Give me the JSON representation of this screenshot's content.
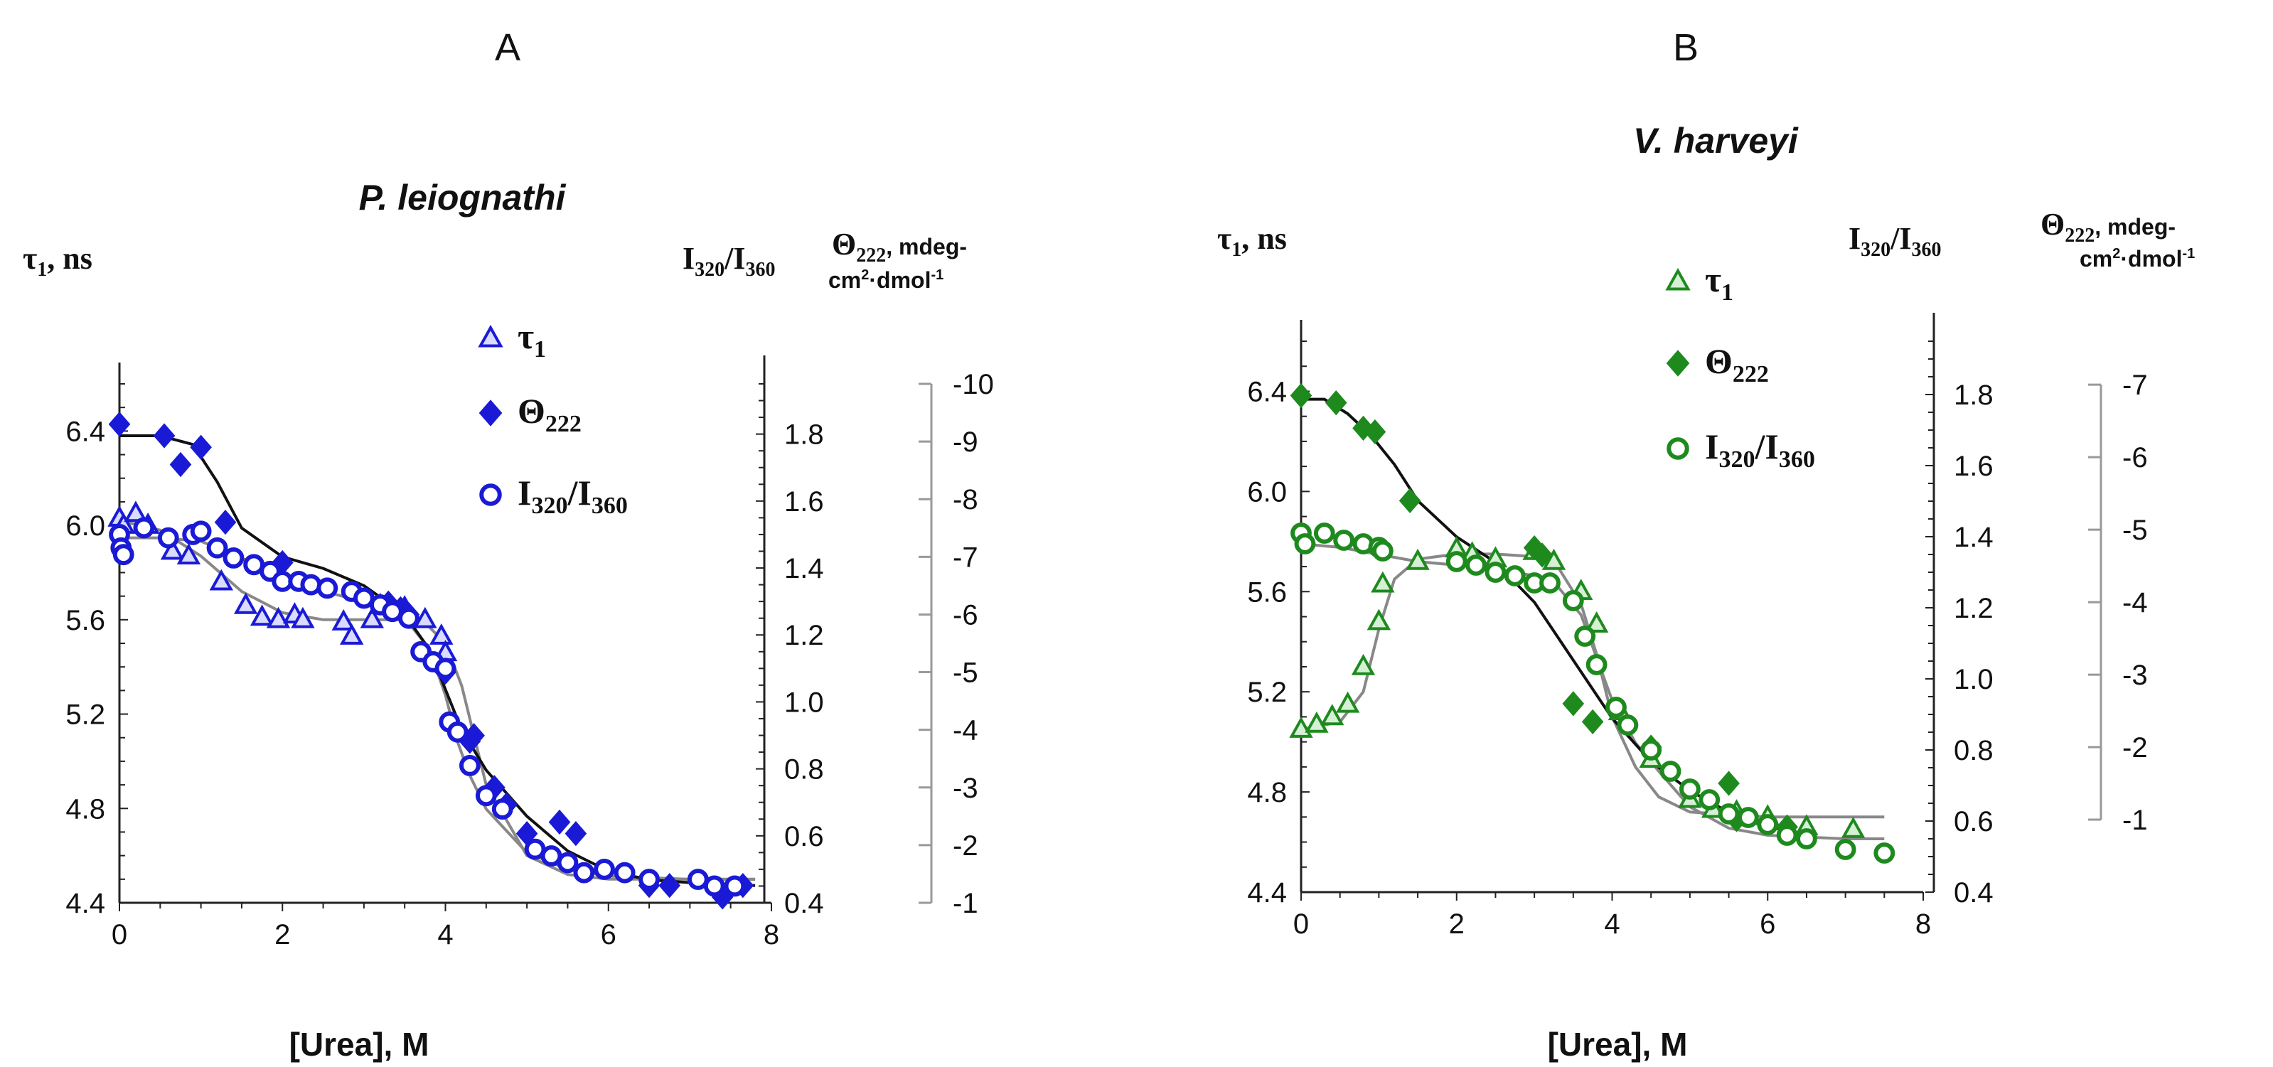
{
  "chart_data": [
    {
      "type": "scatter",
      "panel": "A",
      "title": "P. leiognathi",
      "xlabel": "[Urea], M",
      "xlim": [
        0,
        8
      ],
      "xticks": [
        0,
        2,
        4,
        6,
        8
      ],
      "ylabel_left": "τ1, ns",
      "ylim_left": [
        4.4,
        6.6
      ],
      "yticks_left": [
        4.4,
        4.8,
        5.2,
        5.6,
        6.0,
        6.4
      ],
      "ylabel_right1": "I320/I360",
      "ylim_right1": [
        0.4,
        1.95
      ],
      "yticks_right1": [
        0.4,
        0.6,
        0.8,
        1.0,
        1.2,
        1.4,
        1.6,
        1.8
      ],
      "ylabel_right2": "Θ222, mdeg-cm2-dmol-1",
      "ylim_right2": [
        -1,
        -10
      ],
      "yticks_right2": [
        -1,
        -2,
        -3,
        -4,
        -5,
        -6,
        -7,
        -8,
        -9,
        -10
      ],
      "legend_position": "upper-right",
      "color": "#1a1ad6",
      "fit_color": "#888888",
      "theta_fit_color": "#111111",
      "series": [
        {
          "name": "τ1",
          "marker": "triangle-open",
          "axis": "left",
          "x": [
            0.0,
            0.05,
            0.2,
            0.35,
            0.65,
            0.85,
            1.25,
            1.55,
            1.75,
            1.95,
            2.15,
            2.25,
            2.75,
            2.85,
            3.1,
            3.2,
            3.5,
            3.75,
            3.95,
            4.0
          ],
          "y": [
            6.03,
            6.0,
            6.05,
            6.0,
            5.89,
            5.87,
            5.76,
            5.66,
            5.61,
            5.6,
            5.62,
            5.6,
            5.59,
            5.53,
            5.6,
            5.66,
            5.65,
            5.6,
            5.53,
            5.46
          ]
        },
        {
          "name": "Θ222",
          "marker": "diamond-filled",
          "axis": "right2",
          "x": [
            0.0,
            0.55,
            0.75,
            1.0,
            1.3,
            2.0,
            3.3,
            3.45,
            3.55,
            4.0,
            4.3,
            4.35,
            4.6,
            4.75,
            5.0,
            5.4,
            5.6,
            6.5,
            6.75,
            7.4,
            7.65
          ],
          "y": [
            -9.3,
            -9.1,
            -8.6,
            -8.9,
            -7.6,
            -6.9,
            -6.2,
            -6.1,
            -6.0,
            -5.0,
            -3.8,
            -3.9,
            -3.0,
            -2.7,
            -2.2,
            -2.4,
            -2.2,
            -1.3,
            -1.3,
            -1.1,
            -1.3
          ]
        },
        {
          "name": "I320/I360",
          "marker": "circle-open",
          "axis": "right1",
          "x": [
            0.0,
            0.02,
            0.05,
            0.3,
            0.6,
            0.9,
            1.0,
            1.2,
            1.4,
            1.65,
            1.85,
            2.0,
            2.2,
            2.35,
            2.55,
            2.85,
            3.0,
            3.2,
            3.35,
            3.55,
            3.7,
            3.85,
            4.0,
            4.05,
            4.15,
            4.3,
            4.5,
            4.7,
            5.1,
            5.3,
            5.5,
            5.7,
            5.95,
            6.2,
            6.5,
            7.1,
            7.3,
            7.55
          ],
          "y": [
            1.5,
            1.46,
            1.44,
            1.52,
            1.49,
            1.5,
            1.51,
            1.46,
            1.43,
            1.41,
            1.39,
            1.36,
            1.36,
            1.35,
            1.34,
            1.33,
            1.31,
            1.29,
            1.27,
            1.25,
            1.15,
            1.12,
            1.1,
            0.94,
            0.91,
            0.81,
            0.72,
            0.68,
            0.56,
            0.54,
            0.52,
            0.49,
            0.5,
            0.49,
            0.47,
            0.47,
            0.45,
            0.45
          ]
        }
      ],
      "fit_tau": {
        "x": [
          0,
          0.5,
          1,
          1.5,
          2,
          2.5,
          3,
          3.5,
          3.8,
          4.0,
          4.2,
          4.5,
          5,
          5.5,
          6,
          7,
          7.8
        ],
        "y": [
          6.02,
          5.98,
          5.87,
          5.72,
          5.63,
          5.6,
          5.6,
          5.6,
          5.57,
          5.5,
          5.32,
          4.9,
          4.6,
          4.52,
          4.5,
          4.5,
          4.5
        ]
      },
      "fit_theta": {
        "x": [
          0,
          0.5,
          0.9,
          1.2,
          1.5,
          2,
          2.5,
          3,
          3.5,
          3.8,
          4.0,
          4.2,
          4.5,
          5,
          5.5,
          6,
          6.5,
          7,
          7.8
        ],
        "y": [
          -9.1,
          -9.1,
          -8.95,
          -8.3,
          -7.5,
          -7.0,
          -6.8,
          -6.5,
          -6.0,
          -5.4,
          -4.7,
          -4.0,
          -3.3,
          -2.5,
          -1.9,
          -1.55,
          -1.4,
          -1.35,
          -1.3
        ]
      },
      "fit_ratio": {
        "x": [
          0,
          0.5,
          1,
          1.5,
          2,
          2.5,
          3,
          3.5,
          3.8,
          4.0,
          4.15,
          4.3,
          4.5,
          5,
          5.5,
          6,
          7,
          7.8
        ],
        "y": [
          1.49,
          1.49,
          1.48,
          1.43,
          1.37,
          1.33,
          1.3,
          1.25,
          1.16,
          1.02,
          0.88,
          0.78,
          0.68,
          0.55,
          0.5,
          0.48,
          0.47,
          0.47
        ]
      }
    },
    {
      "type": "scatter",
      "panel": "B",
      "title": "V. harveyi",
      "xlabel": "[Urea], M",
      "xlim": [
        0,
        8
      ],
      "xticks": [
        0,
        2,
        4,
        6,
        8
      ],
      "ylabel_left": "τ1, ns",
      "ylim_left": [
        4.4,
        6.6
      ],
      "yticks_left": [
        4.4,
        4.8,
        5.2,
        5.6,
        6.0,
        6.4
      ],
      "ylabel_right1": "I320/I360",
      "ylim_right1": [
        0.4,
        1.95
      ],
      "yticks_right1": [
        0.4,
        0.6,
        0.8,
        1.0,
        1.2,
        1.4,
        1.6,
        1.8
      ],
      "ylabel_right2": "Θ222, mdeg-cm2-dmol-1",
      "ylim_right2": [
        0,
        -7.6
      ],
      "yticks_right2": [
        -1,
        -2,
        -3,
        -4,
        -5,
        -6,
        -7
      ],
      "legend_position": "upper-right",
      "color": "#1e8a1e",
      "fit_color": "#888888",
      "theta_fit_color": "#111111",
      "series": [
        {
          "name": "τ1",
          "marker": "triangle-open",
          "axis": "left",
          "x": [
            0.0,
            0.2,
            0.4,
            0.6,
            0.8,
            1.0,
            1.05,
            1.5,
            2.0,
            2.2,
            2.5,
            3.0,
            3.25,
            3.6,
            3.8,
            4.1,
            4.5,
            5.0,
            5.3,
            5.6,
            6.0,
            6.5,
            7.1
          ],
          "y": [
            5.05,
            5.07,
            5.1,
            5.15,
            5.3,
            5.48,
            5.63,
            5.72,
            5.77,
            5.75,
            5.73,
            5.76,
            5.72,
            5.6,
            5.47,
            5.12,
            4.93,
            4.77,
            4.73,
            4.72,
            4.7,
            4.66,
            4.65
          ]
        },
        {
          "name": "Θ222",
          "marker": "diamond-filled",
          "axis": "right2",
          "x": [
            0.0,
            0.45,
            0.8,
            0.95,
            1.4,
            3.0,
            3.1,
            3.5,
            3.75,
            4.5,
            5.5,
            5.6,
            6.25
          ],
          "y": [
            -6.85,
            -6.75,
            -6.4,
            -6.35,
            -5.4,
            -4.75,
            -4.65,
            -2.6,
            -2.35,
            -2.0,
            -1.5,
            -1.0,
            -0.9
          ]
        },
        {
          "name": "I320/I360",
          "marker": "circle-open",
          "axis": "right1",
          "x": [
            0.0,
            0.05,
            0.3,
            0.55,
            0.8,
            1.0,
            1.05,
            2.0,
            2.25,
            2.5,
            2.75,
            3.0,
            3.2,
            3.5,
            3.65,
            3.8,
            4.05,
            4.2,
            4.5,
            4.75,
            5.0,
            5.25,
            5.5,
            5.75,
            6.0,
            6.25,
            6.5,
            7.0,
            7.5
          ],
          "y": [
            1.41,
            1.38,
            1.41,
            1.39,
            1.38,
            1.37,
            1.36,
            1.33,
            1.32,
            1.3,
            1.29,
            1.27,
            1.27,
            1.22,
            1.12,
            1.04,
            0.92,
            0.87,
            0.8,
            0.74,
            0.69,
            0.66,
            0.62,
            0.61,
            0.59,
            0.56,
            0.55,
            0.52,
            0.51
          ]
        }
      ],
      "fit_tau": {
        "x": [
          0,
          0.5,
          0.8,
          1.0,
          1.2,
          1.5,
          2,
          2.5,
          3,
          3.3,
          3.6,
          3.8,
          4.0,
          4.3,
          4.6,
          5,
          5.5,
          6,
          7,
          7.5
        ],
        "y": [
          5.05,
          5.08,
          5.2,
          5.45,
          5.65,
          5.73,
          5.75,
          5.75,
          5.74,
          5.7,
          5.55,
          5.35,
          5.1,
          4.9,
          4.78,
          4.72,
          4.71,
          4.7,
          4.7,
          4.7
        ]
      },
      "fit_theta": {
        "x": [
          0,
          0.3,
          0.6,
          0.9,
          1.2,
          1.5,
          2.0,
          2.5,
          3.0,
          3.5,
          4.0,
          4.5,
          5.0,
          5.5,
          6.0,
          6.3
        ],
        "y": [
          -6.8,
          -6.8,
          -6.6,
          -6.3,
          -5.9,
          -5.4,
          -4.9,
          -4.55,
          -4.0,
          -3.2,
          -2.4,
          -1.8,
          -1.4,
          -1.1,
          -0.9,
          -0.85
        ]
      },
      "fit_ratio": {
        "x": [
          0,
          0.5,
          1,
          1.5,
          2,
          2.5,
          3,
          3.3,
          3.6,
          3.8,
          4.0,
          4.3,
          4.6,
          5,
          5.5,
          6,
          7,
          7.5
        ],
        "y": [
          1.38,
          1.37,
          1.35,
          1.33,
          1.32,
          1.31,
          1.29,
          1.26,
          1.18,
          1.06,
          0.94,
          0.82,
          0.74,
          0.64,
          0.58,
          0.56,
          0.55,
          0.55
        ]
      }
    }
  ]
}
